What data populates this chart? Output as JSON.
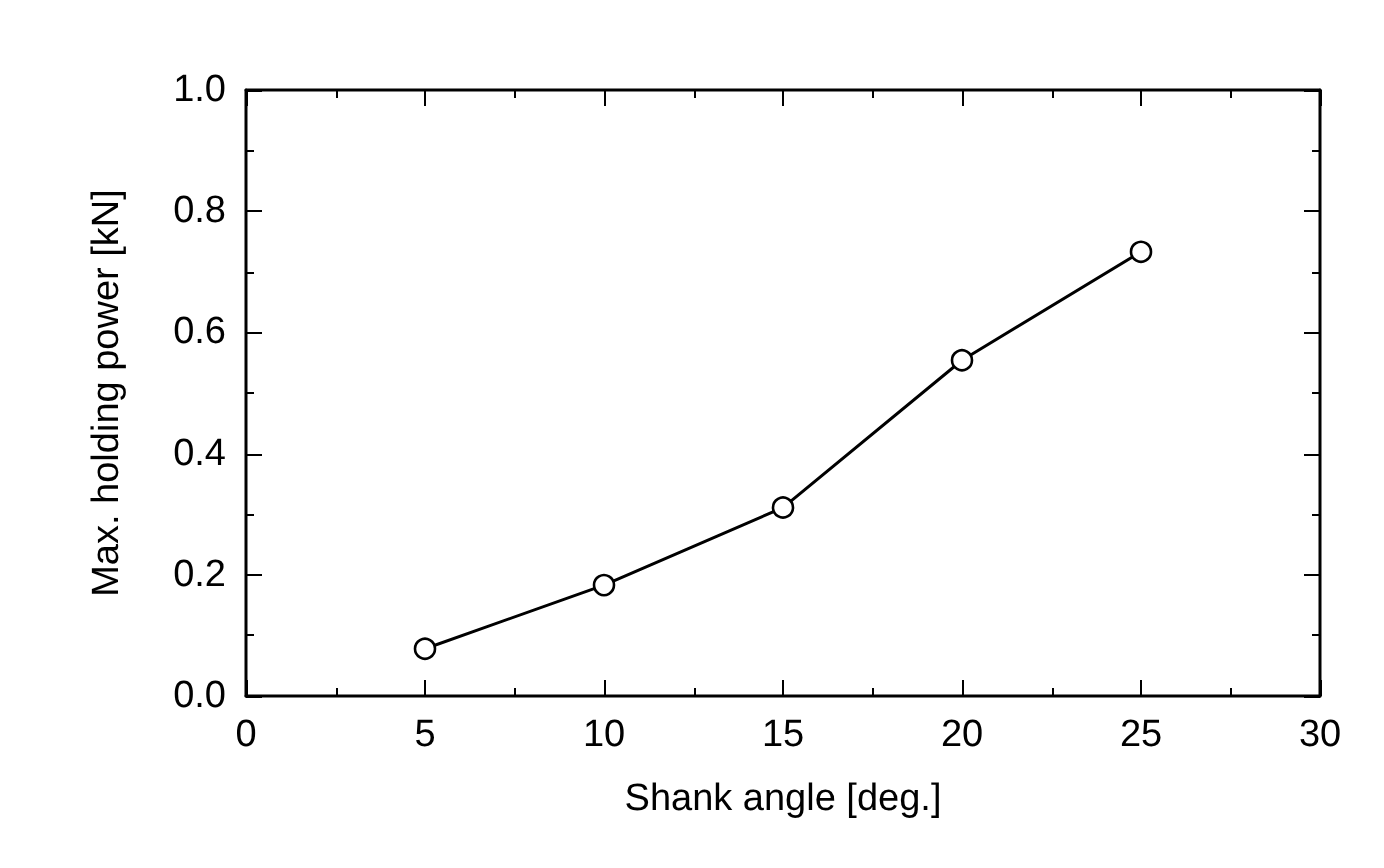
{
  "chart_data": {
    "type": "line",
    "xlabel": "Shank angle [deg.]",
    "ylabel": "Max. holding power [kN]",
    "x": [
      5,
      10,
      15,
      20,
      25
    ],
    "series": [
      {
        "color": "#000000",
        "values": [
          0.078,
          0.183,
          0.311,
          0.554,
          0.733
        ]
      }
    ],
    "xlim": [
      0,
      30
    ],
    "xticks": [
      0,
      5,
      10,
      15,
      20,
      25,
      30
    ],
    "ylim": [
      0,
      1
    ],
    "yticks": [
      {
        "value": 0,
        "label": "0.0"
      },
      {
        "value": 0.2,
        "label": "0.2"
      },
      {
        "value": 0.4,
        "label": "0.4"
      },
      {
        "value": 0.6,
        "label": "0.6"
      },
      {
        "value": 0.8,
        "label": "0.8"
      },
      {
        "value": 1,
        "label": "1.0"
      }
    ],
    "marker": "circle",
    "line_style": "solid",
    "grid": false
  }
}
